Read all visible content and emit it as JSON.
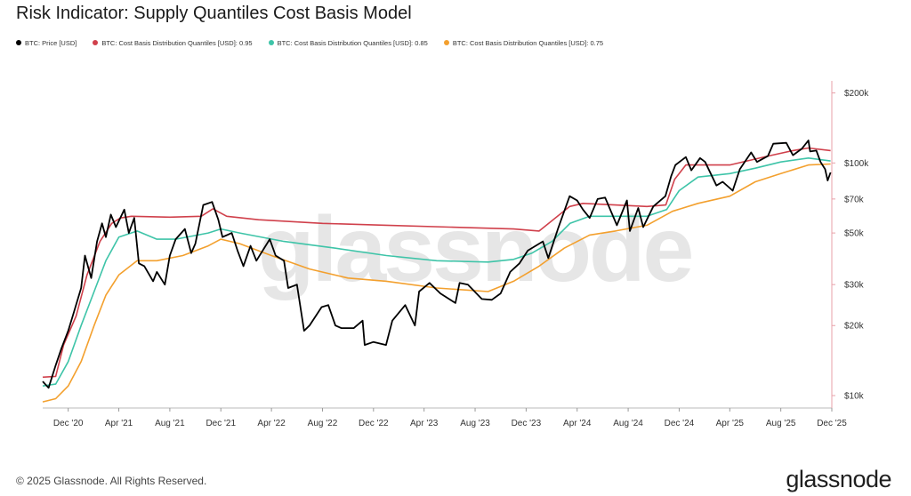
{
  "title": "Risk Indicator: Supply Quantiles Cost Basis Model",
  "legend": [
    {
      "label": "BTC: Price [USD]",
      "color": "#000000"
    },
    {
      "label": "BTC: Cost Basis Distribution Quantiles [USD]: 0.95",
      "color": "#d0404b"
    },
    {
      "label": "BTC: Cost Basis Distribution Quantiles [USD]: 0.85",
      "color": "#3ec4a8"
    },
    {
      "label": "BTC: Cost Basis Distribution Quantiles [USD]: 0.75",
      "color": "#f3a02e"
    }
  ],
  "watermark": "glassnode",
  "footer": {
    "copyright": "© 2025 Glassnode. All Rights Reserved.",
    "brand": "glassnode"
  },
  "chart_data": {
    "type": "line",
    "title": "Risk Indicator: Supply Quantiles Cost Basis Model",
    "y_scale": "log",
    "ylim": [
      9000,
      210000
    ],
    "y_axis_color": "#e8a0a8",
    "x_start": "2020-10",
    "x_end": "2025-12",
    "x_tick_labels": [
      "Dec '20",
      "Apr '21",
      "Aug '21",
      "Dec '21",
      "Apr '22",
      "Aug '22",
      "Dec '22",
      "Apr '23",
      "Aug '23",
      "Dec '23",
      "Apr '24",
      "Aug '24",
      "Dec '24",
      "Apr '25",
      "Aug '25",
      "Dec '25"
    ],
    "x_tick_dates": [
      "2020-12",
      "2021-04",
      "2021-08",
      "2021-12",
      "2022-04",
      "2022-08",
      "2022-12",
      "2023-04",
      "2023-08",
      "2023-12",
      "2024-04",
      "2024-08",
      "2024-12",
      "2025-04",
      "2025-08",
      "2025-12"
    ],
    "y_tick_labels": [
      "$10k",
      "$20k",
      "$30k",
      "$50k",
      "$70k",
      "$100k",
      "$200k"
    ],
    "y_tick_values": [
      10000,
      20000,
      30000,
      50000,
      70000,
      100000,
      200000
    ],
    "grid": false,
    "legend_position": "top-left",
    "series": [
      {
        "name": "BTC: Price [USD]",
        "color": "#000000",
        "points": [
          [
            "2020-10-01",
            11500
          ],
          [
            "2020-10-15",
            10800
          ],
          [
            "2020-11-01",
            13500
          ],
          [
            "2020-11-15",
            16000
          ],
          [
            "2020-12-01",
            19000
          ],
          [
            "2020-12-15",
            23000
          ],
          [
            "2021-01-01",
            29000
          ],
          [
            "2021-01-10",
            40000
          ],
          [
            "2021-01-25",
            32000
          ],
          [
            "2021-02-08",
            46000
          ],
          [
            "2021-02-20",
            55000
          ],
          [
            "2021-03-01",
            48000
          ],
          [
            "2021-03-13",
            60000
          ],
          [
            "2021-03-25",
            53000
          ],
          [
            "2021-04-14",
            63000
          ],
          [
            "2021-04-25",
            50000
          ],
          [
            "2021-05-08",
            58000
          ],
          [
            "2021-05-19",
            37000
          ],
          [
            "2021-06-01",
            36000
          ],
          [
            "2021-06-22",
            31000
          ],
          [
            "2021-07-01",
            34000
          ],
          [
            "2021-07-20",
            30000
          ],
          [
            "2021-08-01",
            40000
          ],
          [
            "2021-08-15",
            47000
          ],
          [
            "2021-09-06",
            52000
          ],
          [
            "2021-09-21",
            41000
          ],
          [
            "2021-10-01",
            45000
          ],
          [
            "2021-10-20",
            66000
          ],
          [
            "2021-11-10",
            68000
          ],
          [
            "2021-11-25",
            57000
          ],
          [
            "2021-12-05",
            48000
          ],
          [
            "2021-12-27",
            50000
          ],
          [
            "2022-01-10",
            42000
          ],
          [
            "2022-01-24",
            36000
          ],
          [
            "2022-02-10",
            44000
          ],
          [
            "2022-02-24",
            38000
          ],
          [
            "2022-03-28",
            47000
          ],
          [
            "2022-04-11",
            40000
          ],
          [
            "2022-05-01",
            38000
          ],
          [
            "2022-05-11",
            29000
          ],
          [
            "2022-06-01",
            30000
          ],
          [
            "2022-06-18",
            19000
          ],
          [
            "2022-07-01",
            20000
          ],
          [
            "2022-07-30",
            24000
          ],
          [
            "2022-08-15",
            24500
          ],
          [
            "2022-09-01",
            20000
          ],
          [
            "2022-09-15",
            19500
          ],
          [
            "2022-10-15",
            19500
          ],
          [
            "2022-11-05",
            21000
          ],
          [
            "2022-11-10",
            16500
          ],
          [
            "2022-12-01",
            17000
          ],
          [
            "2022-12-31",
            16500
          ],
          [
            "2023-01-15",
            21000
          ],
          [
            "2023-02-15",
            24500
          ],
          [
            "2023-03-10",
            20000
          ],
          [
            "2023-03-20",
            28000
          ],
          [
            "2023-04-14",
            30500
          ],
          [
            "2023-05-10",
            27500
          ],
          [
            "2023-06-15",
            25000
          ],
          [
            "2023-06-25",
            30500
          ],
          [
            "2023-07-15",
            30000
          ],
          [
            "2023-08-17",
            26000
          ],
          [
            "2023-09-10",
            25800
          ],
          [
            "2023-10-01",
            27500
          ],
          [
            "2023-10-24",
            34000
          ],
          [
            "2023-11-15",
            37000
          ],
          [
            "2023-12-05",
            42000
          ],
          [
            "2024-01-10",
            46000
          ],
          [
            "2024-01-23",
            39000
          ],
          [
            "2024-02-15",
            52000
          ],
          [
            "2024-03-01",
            62000
          ],
          [
            "2024-03-14",
            72000
          ],
          [
            "2024-04-01",
            69000
          ],
          [
            "2024-04-15",
            63000
          ],
          [
            "2024-05-01",
            58000
          ],
          [
            "2024-05-20",
            70000
          ],
          [
            "2024-06-07",
            71000
          ],
          [
            "2024-07-05",
            54000
          ],
          [
            "2024-07-29",
            69000
          ],
          [
            "2024-08-05",
            51000
          ],
          [
            "2024-08-25",
            64000
          ],
          [
            "2024-09-06",
            53000
          ],
          [
            "2024-09-30",
            65000
          ],
          [
            "2024-10-29",
            72000
          ],
          [
            "2024-11-12",
            88000
          ],
          [
            "2024-11-22",
            98000
          ],
          [
            "2024-12-17",
            106000
          ],
          [
            "2024-12-30",
            93000
          ],
          [
            "2025-01-20",
            105000
          ],
          [
            "2025-02-01",
            101000
          ],
          [
            "2025-02-28",
            80000
          ],
          [
            "2025-03-15",
            83000
          ],
          [
            "2025-04-08",
            76000
          ],
          [
            "2025-04-25",
            94000
          ],
          [
            "2025-05-22",
            111000
          ],
          [
            "2025-06-05",
            101000
          ],
          [
            "2025-07-01",
            107000
          ],
          [
            "2025-07-14",
            121000
          ],
          [
            "2025-08-14",
            122000
          ],
          [
            "2025-08-30",
            108000
          ],
          [
            "2025-09-20",
            115000
          ],
          [
            "2025-10-06",
            125000
          ],
          [
            "2025-10-10",
            112000
          ],
          [
            "2025-10-25",
            113000
          ],
          [
            "2025-11-04",
            101000
          ],
          [
            "2025-11-15",
            94000
          ],
          [
            "2025-11-21",
            84000
          ],
          [
            "2025-11-28",
            91000
          ]
        ]
      },
      {
        "name": "BTC: Cost Basis Distribution Quantiles [USD]: 0.95",
        "color": "#d0404b",
        "points": [
          [
            "2020-10-01",
            12000
          ],
          [
            "2020-11-01",
            12100
          ],
          [
            "2020-11-20",
            16500
          ],
          [
            "2020-12-20",
            22000
          ],
          [
            "2021-01-15",
            33000
          ],
          [
            "2021-02-15",
            46000
          ],
          [
            "2021-03-15",
            55000
          ],
          [
            "2021-04-05",
            58000
          ],
          [
            "2021-05-01",
            59000
          ],
          [
            "2021-08-01",
            58500
          ],
          [
            "2021-10-15",
            59000
          ],
          [
            "2021-11-12",
            63500
          ],
          [
            "2021-12-15",
            59000
          ],
          [
            "2022-03-01",
            57000
          ],
          [
            "2022-08-01",
            55000
          ],
          [
            "2023-01-01",
            54000
          ],
          [
            "2023-06-01",
            53000
          ],
          [
            "2023-11-01",
            52000
          ],
          [
            "2024-01-01",
            51000
          ],
          [
            "2024-03-14",
            65000
          ],
          [
            "2024-04-15",
            67000
          ],
          [
            "2024-07-01",
            66000
          ],
          [
            "2024-09-15",
            65000
          ],
          [
            "2024-10-30",
            66000
          ],
          [
            "2024-11-20",
            85000
          ],
          [
            "2024-12-17",
            98000
          ],
          [
            "2025-04-01",
            98000
          ],
          [
            "2025-07-01",
            107000
          ],
          [
            "2025-08-30",
            113000
          ],
          [
            "2025-10-06",
            116000
          ],
          [
            "2025-11-28",
            113000
          ]
        ]
      },
      {
        "name": "BTC: Cost Basis Distribution Quantiles [USD]: 0.85",
        "color": "#3ec4a8",
        "points": [
          [
            "2020-10-01",
            11000
          ],
          [
            "2020-11-01",
            11200
          ],
          [
            "2020-12-01",
            14000
          ],
          [
            "2021-01-01",
            20000
          ],
          [
            "2021-02-01",
            28000
          ],
          [
            "2021-03-01",
            38000
          ],
          [
            "2021-04-01",
            48000
          ],
          [
            "2021-05-15",
            51000
          ],
          [
            "2021-07-01",
            47000
          ],
          [
            "2021-08-15",
            47000
          ],
          [
            "2021-11-01",
            50000
          ],
          [
            "2021-12-01",
            52000
          ],
          [
            "2022-01-15",
            50000
          ],
          [
            "2022-05-01",
            46000
          ],
          [
            "2022-09-01",
            43000
          ],
          [
            "2023-01-01",
            40000
          ],
          [
            "2023-05-01",
            38000
          ],
          [
            "2023-09-01",
            37500
          ],
          [
            "2023-11-01",
            38500
          ],
          [
            "2023-12-15",
            41000
          ],
          [
            "2024-02-01",
            46000
          ],
          [
            "2024-03-15",
            55000
          ],
          [
            "2024-05-01",
            59000
          ],
          [
            "2024-07-01",
            59000
          ],
          [
            "2024-09-15",
            59000
          ],
          [
            "2024-11-01",
            63000
          ],
          [
            "2024-12-01",
            76000
          ],
          [
            "2025-01-15",
            87000
          ],
          [
            "2025-04-01",
            90000
          ],
          [
            "2025-06-01",
            95000
          ],
          [
            "2025-08-01",
            101000
          ],
          [
            "2025-10-06",
            105000
          ],
          [
            "2025-11-28",
            102000
          ]
        ]
      },
      {
        "name": "BTC: Cost Basis Distribution Quantiles [USD]: 0.75",
        "color": "#f3a02e",
        "points": [
          [
            "2020-10-01",
            9400
          ],
          [
            "2020-11-01",
            9700
          ],
          [
            "2020-12-01",
            11000
          ],
          [
            "2021-01-01",
            14000
          ],
          [
            "2021-02-01",
            20000
          ],
          [
            "2021-03-01",
            27000
          ],
          [
            "2021-04-01",
            33000
          ],
          [
            "2021-05-15",
            38000
          ],
          [
            "2021-07-01",
            38000
          ],
          [
            "2021-09-01",
            40000
          ],
          [
            "2021-11-01",
            44000
          ],
          [
            "2021-12-01",
            47000
          ],
          [
            "2022-01-15",
            45000
          ],
          [
            "2022-04-01",
            40000
          ],
          [
            "2022-07-01",
            35000
          ],
          [
            "2022-10-01",
            32000
          ],
          [
            "2023-01-01",
            31000
          ],
          [
            "2023-05-01",
            29000
          ],
          [
            "2023-09-01",
            28000
          ],
          [
            "2023-11-01",
            31000
          ],
          [
            "2024-01-01",
            36000
          ],
          [
            "2024-03-01",
            43000
          ],
          [
            "2024-05-01",
            49000
          ],
          [
            "2024-07-01",
            51000
          ],
          [
            "2024-09-15",
            54000
          ],
          [
            "2024-11-15",
            62000
          ],
          [
            "2025-01-15",
            67000
          ],
          [
            "2025-04-01",
            72000
          ],
          [
            "2025-06-01",
            83000
          ],
          [
            "2025-08-01",
            90000
          ],
          [
            "2025-10-06",
            98000
          ],
          [
            "2025-11-28",
            99000
          ]
        ]
      }
    ]
  }
}
